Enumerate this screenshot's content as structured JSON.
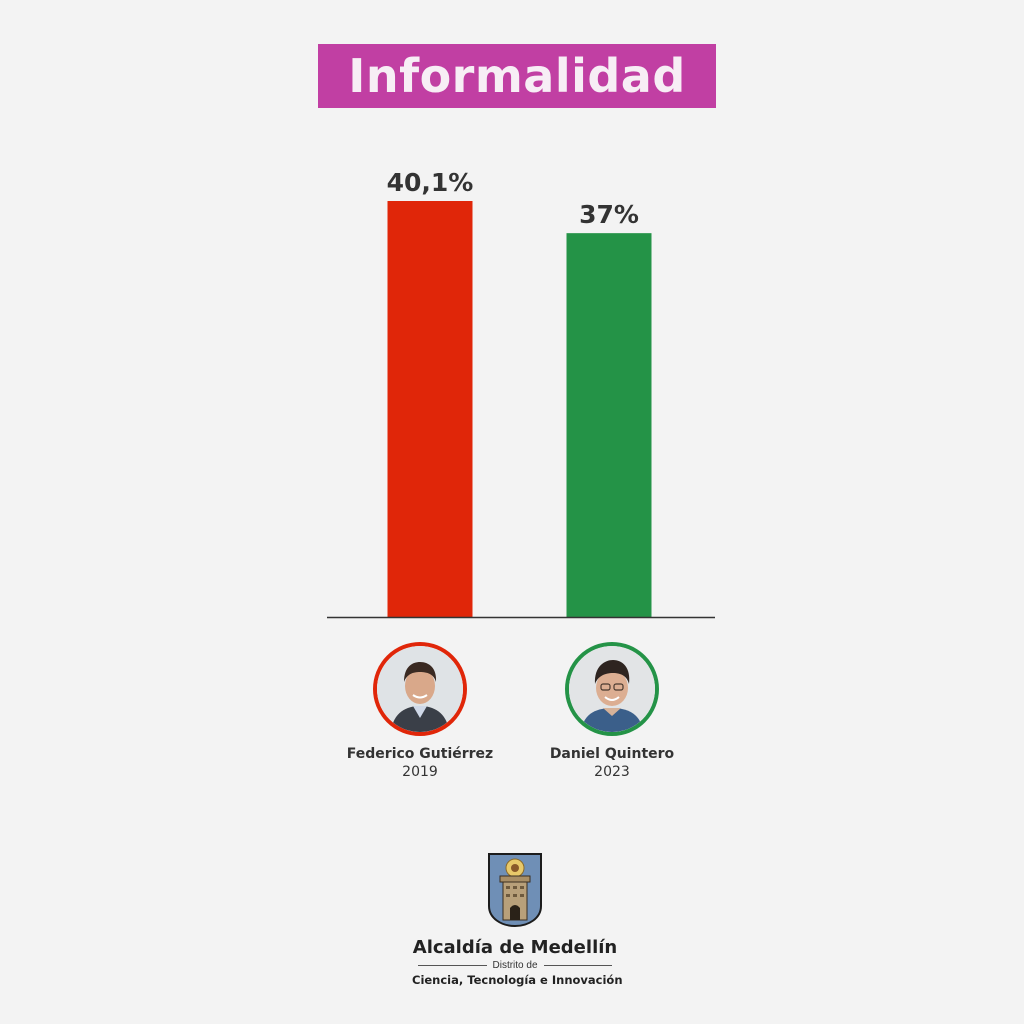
{
  "colors": {
    "title_bg": "#c13fa3",
    "title_text": "#f7eef5",
    "background": "#f3f3f3",
    "bar_2019": "#e02609",
    "bar_2023": "#249347",
    "text": "#333333"
  },
  "title": "Informalidad",
  "chart_data": {
    "type": "bar",
    "title": "Informalidad",
    "categories": [
      "Federico Gutiérrez 2019",
      "Daniel Quintero 2023"
    ],
    "values": [
      40.1,
      37
    ],
    "value_labels": [
      "40,1%",
      "37%"
    ],
    "unit": "%",
    "colors": [
      "#e02609",
      "#249347"
    ],
    "ylim": [
      0,
      40.1
    ],
    "grid": false,
    "legend": "none"
  },
  "candidates": [
    {
      "name": "Federico Gutiérrez",
      "year": "2019",
      "color": "#e02609",
      "icon": "person-photo-icon"
    },
    {
      "name": "Daniel Quintero",
      "year": "2023",
      "color": "#249347",
      "icon": "person-photo-icon"
    }
  ],
  "logo": {
    "name": "Alcaldía de Medellín",
    "subtitle": "Distrito de",
    "tagline": "Ciencia, Tecnología e Innovación",
    "icon": "coat-of-arms-icon"
  }
}
